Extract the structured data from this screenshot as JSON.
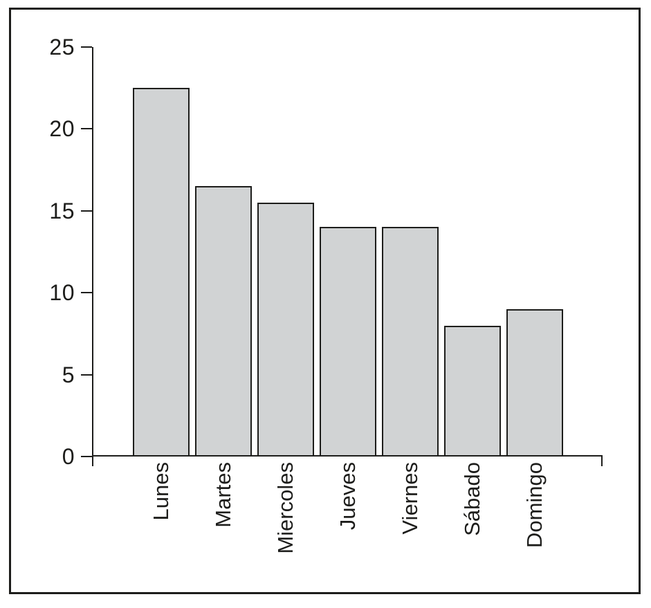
{
  "chart_data": {
    "type": "bar",
    "title": "",
    "xlabel": "",
    "ylabel": "",
    "categories": [
      "Lunes",
      "Martes",
      "Miercoles",
      "Jueves",
      "Viernes",
      "Sábado",
      "Domingo"
    ],
    "values": [
      22.5,
      16.5,
      15.5,
      14,
      14,
      8,
      9
    ],
    "ylim": [
      0,
      25
    ],
    "yticks": [
      0,
      5,
      10,
      15,
      20,
      25
    ],
    "grid": false,
    "legend": null,
    "colors": {
      "bar_fill": "#d1d3d4",
      "bar_border": "#1d1d1b",
      "axis": "#1d1d1b",
      "text": "#1d1d1b",
      "background": "#ffffff"
    }
  }
}
